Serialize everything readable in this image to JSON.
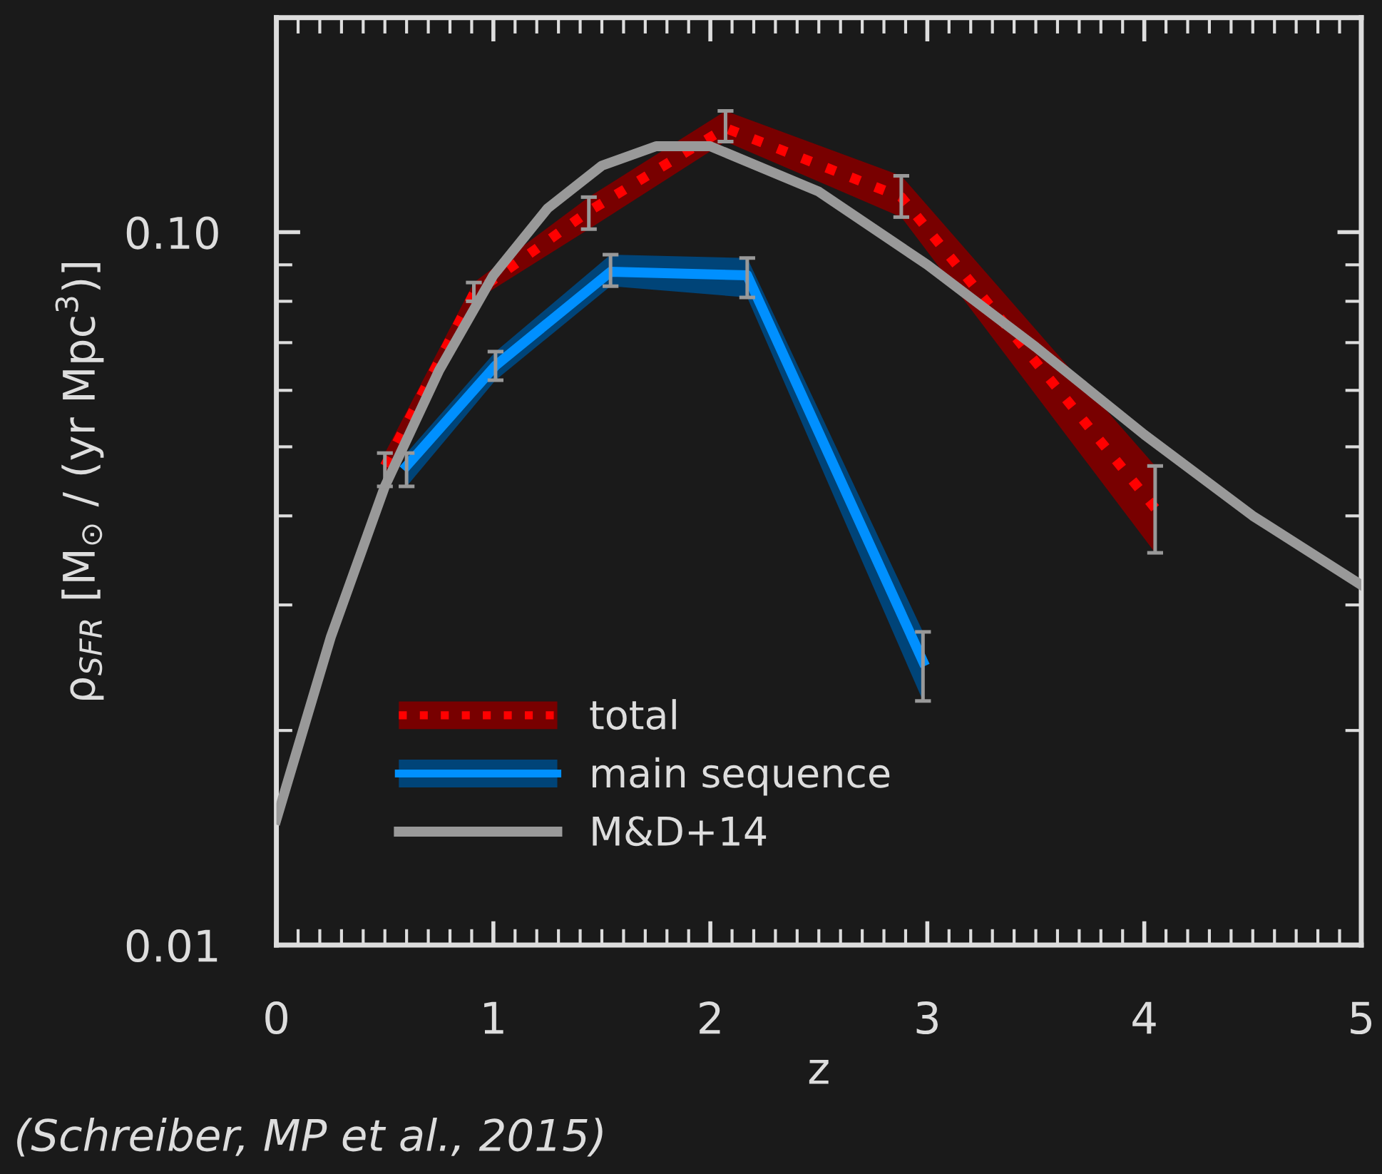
{
  "chart_data": {
    "type": "line",
    "xlabel": "z",
    "ylabel": "ρ$_{SFR}$ [M$_{⊙}$ / (yr Mpc$^{3}$)]",
    "log": "y",
    "xlim": [
      0,
      5
    ],
    "ylim": [
      0.01,
      0.2
    ],
    "xticks": [
      0,
      1,
      2,
      3,
      4,
      5
    ],
    "yticks": [
      {
        "value": 0.01,
        "label": "0.01"
      },
      {
        "value": 0.1,
        "label": "0.10"
      }
    ],
    "grid": false,
    "legend": "bottom left",
    "series": [
      {
        "name": "total",
        "color": "#ff0000",
        "line_style": "dotted",
        "x": [
          0.5,
          0.91,
          1.44,
          2.07,
          2.88,
          4.05
        ],
        "values": [
          0.047,
          0.082,
          0.107,
          0.14,
          0.112,
          0.041
        ],
        "lower": [
          0.044,
          0.08,
          0.101,
          0.134,
          0.105,
          0.0355
        ],
        "upper": [
          0.049,
          0.085,
          0.112,
          0.148,
          0.12,
          0.047
        ],
        "errors": [
          [
            0.044,
            0.049
          ],
          [
            0.08,
            0.085
          ],
          [
            0.101,
            0.112
          ],
          [
            0.134,
            0.148
          ],
          [
            0.105,
            0.12
          ],
          [
            0.0355,
            0.047
          ]
        ]
      },
      {
        "name": "main sequence",
        "color": "#0090ff",
        "line_style": "solid",
        "x": [
          0.6,
          1.01,
          1.54,
          2.17,
          2.98
        ],
        "values": [
          0.047,
          0.065,
          0.088,
          0.087,
          0.025
        ],
        "lower": [
          0.044,
          0.062,
          0.084,
          0.081,
          0.022
        ],
        "upper": [
          0.049,
          0.068,
          0.093,
          0.092,
          0.0275
        ],
        "errors": [
          [
            0.044,
            0.049
          ],
          [
            0.062,
            0.068
          ],
          [
            0.084,
            0.093
          ],
          [
            0.081,
            0.092
          ],
          [
            0.022,
            0.0275
          ]
        ]
      },
      {
        "name": "M&D+14",
        "color": "#999999",
        "line_style": "solid",
        "x": [
          0,
          0.25,
          0.5,
          0.75,
          1,
          1.25,
          1.5,
          1.75,
          2,
          2.5,
          3,
          3.5,
          4,
          4.5,
          5
        ],
        "values": [
          0.015,
          0.027,
          0.044,
          0.064,
          0.087,
          0.108,
          0.124,
          0.132,
          0.132,
          0.114,
          0.09,
          0.069,
          0.052,
          0.04,
          0.032
        ]
      }
    ],
    "annotations": [
      "(Schreiber, MP et al., 2015)"
    ]
  }
}
